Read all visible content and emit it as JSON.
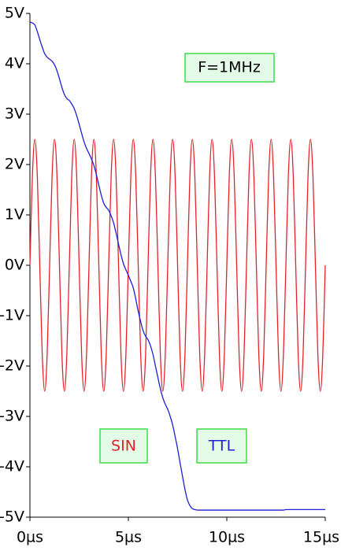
{
  "chart_data": {
    "type": "line",
    "annotation": "F=1MHz",
    "x": [
      0,
      0.125,
      0.25,
      0.375,
      0.5,
      0.625,
      0.75,
      0.875,
      1,
      1.125,
      1.25,
      1.375,
      1.5,
      1.625,
      1.75,
      1.875,
      2,
      2.125,
      2.25,
      2.375,
      2.5,
      2.625,
      2.75,
      2.875,
      3,
      3.125,
      3.25,
      3.375,
      3.5,
      3.625,
      3.75,
      3.875,
      4,
      4.125,
      4.25,
      4.375,
      4.5,
      4.625,
      4.75,
      4.875,
      5,
      5.125,
      5.25,
      5.375,
      5.5,
      5.625,
      5.75,
      5.875,
      6,
      6.125,
      6.25,
      6.375,
      6.5,
      6.625,
      6.75,
      6.875,
      7,
      7.125,
      7.25,
      7.375,
      7.5,
      7.625,
      7.75,
      7.875,
      8,
      8.125,
      8.25,
      8.375,
      8.5,
      8.625,
      8.75,
      8.875,
      9,
      9.125,
      9.25,
      9.375,
      9.5,
      9.625,
      9.75,
      9.875,
      10,
      10.125,
      10.25,
      10.375,
      10.5,
      10.625,
      10.75,
      10.875,
      11,
      11.125,
      11.25,
      11.375,
      11.5,
      11.625,
      11.75,
      11.875,
      12,
      12.125,
      12.25,
      12.375,
      12.5,
      12.625,
      12.75,
      12.875,
      13,
      13.125,
      13.25,
      13.375,
      13.5,
      13.625,
      13.75,
      13.875,
      14,
      14.125,
      14.25,
      14.375,
      14.5,
      14.625,
      14.75,
      14.875,
      15
    ],
    "series": [
      {
        "name": "SIN",
        "color": "#e3232b",
        "values": [
          0,
          1.77,
          2.5,
          1.77,
          0,
          -1.77,
          -2.5,
          -1.77,
          0,
          1.77,
          2.5,
          1.77,
          0,
          -1.77,
          -2.5,
          -1.77,
          0,
          1.77,
          2.5,
          1.77,
          0,
          -1.77,
          -2.5,
          -1.77,
          0,
          1.77,
          2.5,
          1.77,
          0,
          -1.77,
          -2.5,
          -1.77,
          0,
          1.77,
          2.5,
          1.77,
          0,
          -1.77,
          -2.5,
          -1.77,
          0,
          1.77,
          2.5,
          1.77,
          0,
          -1.77,
          -2.5,
          -1.77,
          0,
          1.77,
          2.5,
          1.77,
          0,
          -1.77,
          -2.5,
          -1.77,
          0,
          1.77,
          2.5,
          1.77,
          0,
          -1.77,
          -2.5,
          -1.77,
          0,
          1.77,
          2.5,
          1.77,
          0,
          -1.77,
          -2.5,
          -1.77,
          0,
          1.77,
          2.5,
          1.77,
          0,
          -1.77,
          -2.5,
          -1.77,
          0,
          1.77,
          2.5,
          1.77,
          0,
          -1.77,
          -2.5,
          -1.77,
          0,
          1.77,
          2.5,
          1.77,
          0,
          -1.77,
          -2.5,
          -1.77,
          0,
          1.77,
          2.5,
          1.77,
          0,
          -1.77,
          -2.5,
          -1.77,
          0,
          1.77,
          2.5,
          1.77,
          0,
          -1.77,
          -2.5,
          -1.77,
          0,
          1.77,
          2.5,
          1.77,
          0,
          -1.77,
          -2.5,
          -1.77,
          0
        ]
      },
      {
        "name": "TTL",
        "color": "#1f1fd6",
        "values": [
          4.83,
          4.81,
          4.77,
          4.64,
          4.48,
          4.33,
          4.2,
          4.13,
          4.09,
          4.05,
          3.98,
          3.86,
          3.7,
          3.53,
          3.39,
          3.31,
          3.27,
          3.2,
          3.11,
          2.97,
          2.8,
          2.62,
          2.45,
          2.32,
          2.22,
          2.11,
          1.98,
          1.8,
          1.59,
          1.39,
          1.23,
          1.15,
          1.09,
          0.98,
          0.84,
          0.64,
          0.42,
          0.21,
          0.03,
          -0.09,
          -0.2,
          -0.32,
          -0.45,
          -0.67,
          -0.91,
          -1.12,
          -1.3,
          -1.41,
          -1.48,
          -1.6,
          -1.77,
          -2.0,
          -2.23,
          -2.45,
          -2.63,
          -2.76,
          -2.86,
          -3.0,
          -3.17,
          -3.4,
          -3.64,
          -3.92,
          -4.19,
          -4.45,
          -4.66,
          -4.77,
          -4.83,
          -4.85,
          -4.86,
          -4.86,
          -4.86,
          -4.86,
          -4.86,
          -4.86,
          -4.86,
          -4.86,
          -4.86,
          -4.86,
          -4.86,
          -4.86,
          -4.86,
          -4.86,
          -4.86,
          -4.86,
          -4.86,
          -4.86,
          -4.86,
          -4.86,
          -4.86,
          -4.86,
          -4.86,
          -4.86,
          -4.86,
          -4.86,
          -4.86,
          -4.86,
          -4.86,
          -4.86,
          -4.86,
          -4.86,
          -4.86,
          -4.86,
          -4.86,
          -4.86,
          -4.85,
          -4.85,
          -4.85,
          -4.85,
          -4.85,
          -4.85,
          -4.85,
          -4.85,
          -4.85,
          -4.85,
          -4.85,
          -4.85,
          -4.85,
          -4.85,
          -4.85,
          -4.85,
          -4.85
        ]
      }
    ],
    "xlim": [
      0,
      15
    ],
    "xticks": [
      {
        "value": 0,
        "label": "0µs"
      },
      {
        "value": 5,
        "label": "5µs"
      },
      {
        "value": 10,
        "label": "10µs"
      },
      {
        "value": 15,
        "label": "15µs"
      }
    ],
    "ylim": [
      -5,
      5
    ],
    "yticks": [
      {
        "value": 5,
        "label": "5V"
      },
      {
        "value": 4,
        "label": "4V"
      },
      {
        "value": 3,
        "label": "3V"
      },
      {
        "value": 2,
        "label": "2V"
      },
      {
        "value": 1,
        "label": "1V"
      },
      {
        "value": 0,
        "label": "0V"
      },
      {
        "value": -1,
        "label": "-1V"
      },
      {
        "value": -2,
        "label": "-2V"
      },
      {
        "value": -3,
        "label": "-3V"
      },
      {
        "value": -4,
        "label": "-4V"
      },
      {
        "value": -5,
        "label": "-5V"
      }
    ],
    "grid": false
  }
}
